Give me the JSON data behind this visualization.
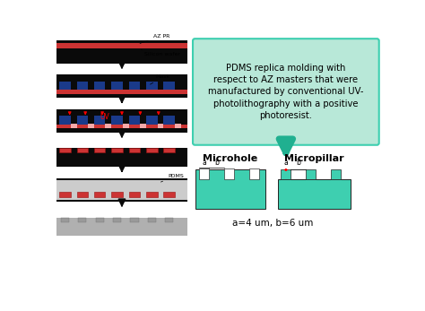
{
  "bg_color": "#ffffff",
  "teal_color": "#3ecfb0",
  "black_color": "#0a0a0a",
  "red_color": "#cc3333",
  "blue_color": "#1a3a8a",
  "gray_color": "#b0b0b0",
  "gray_light": "#cccccc",
  "pink_color": "#f5aaaa",
  "text_box_color": "#b8e8d8",
  "text_box_border": "#3ecfb0",
  "arrow_teal": "#20b090",
  "pdms_text": "PDMS replica molding with\nrespect to AZ masters that were\nmanufactured by conventional UV-\nphotolithography with a positive\nphotoresist.",
  "dim_label": "a=4 um, b=6 um",
  "microhole_label": "Microhole",
  "micropillar_label": "Micropillar"
}
